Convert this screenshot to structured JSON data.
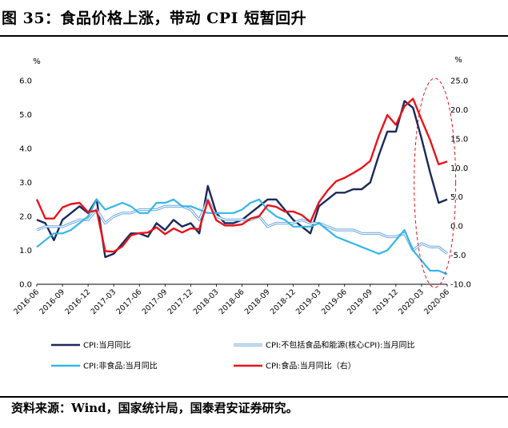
{
  "header": {
    "title": "图 35：食品价格上涨，带动 CPI 短暂回升"
  },
  "footer": {
    "source": "资料来源：Wind，国家统计局，国泰君安证券研究。"
  },
  "chart_data": {
    "type": "line",
    "left_axis": {
      "unit": "%",
      "ylim": [
        0,
        6
      ],
      "ticks": [
        "0.0",
        "1.0",
        "2.0",
        "3.0",
        "4.0",
        "5.0",
        "6.0"
      ]
    },
    "right_axis": {
      "unit": "%",
      "ylim": [
        -10,
        25
      ],
      "ticks": [
        "-10.0",
        "-5.0",
        "0.0",
        "5.0",
        "10.0",
        "15.0",
        "20.0",
        "25.0"
      ]
    },
    "x_tick_labels": [
      "2016-06",
      "2016-09",
      "2016-12",
      "2017-03",
      "2017-06",
      "2017-09",
      "2017-12",
      "2018-03",
      "2018-06",
      "2018-09",
      "2018-12",
      "2019-03",
      "2019-06",
      "2019-09",
      "2019-12",
      "2020-03",
      "2020-06"
    ],
    "x": [
      "2016-06",
      "2016-07",
      "2016-08",
      "2016-09",
      "2016-10",
      "2016-11",
      "2016-12",
      "2017-01",
      "2017-02",
      "2017-03",
      "2017-04",
      "2017-05",
      "2017-06",
      "2017-07",
      "2017-08",
      "2017-09",
      "2017-10",
      "2017-11",
      "2017-12",
      "2018-01",
      "2018-02",
      "2018-03",
      "2018-04",
      "2018-05",
      "2018-06",
      "2018-07",
      "2018-08",
      "2018-09",
      "2018-10",
      "2018-11",
      "2018-12",
      "2019-01",
      "2019-02",
      "2019-03",
      "2019-04",
      "2019-05",
      "2019-06",
      "2019-07",
      "2019-08",
      "2019-09",
      "2019-10",
      "2019-11",
      "2019-12",
      "2020-01",
      "2020-02",
      "2020-03",
      "2020-04",
      "2020-05",
      "2020-06"
    ],
    "series": [
      {
        "name": "CPI:当月同比",
        "axis": "left",
        "color": "#1a2a5c",
        "width": 2.4,
        "double": false,
        "values": [
          1.9,
          1.8,
          1.3,
          1.9,
          2.1,
          2.3,
          2.1,
          2.5,
          0.8,
          0.9,
          1.2,
          1.5,
          1.5,
          1.4,
          1.8,
          1.6,
          1.9,
          1.7,
          1.8,
          1.5,
          2.9,
          2.1,
          1.8,
          1.8,
          1.9,
          2.1,
          2.3,
          2.5,
          2.5,
          2.2,
          1.9,
          1.7,
          1.5,
          2.3,
          2.5,
          2.7,
          2.7,
          2.8,
          2.8,
          3.0,
          3.8,
          4.5,
          4.5,
          5.4,
          5.2,
          4.3,
          3.3,
          2.4,
          2.5
        ]
      },
      {
        "name": "CPI:不包括食品和能源(核心CPI):当月同比",
        "axis": "left",
        "color": "#6aa8da",
        "width": 1.1,
        "double": true,
        "values": [
          1.6,
          1.7,
          1.7,
          1.7,
          1.8,
          1.9,
          1.9,
          2.2,
          1.8,
          2.0,
          2.1,
          2.1,
          2.2,
          2.2,
          2.2,
          2.3,
          2.3,
          2.3,
          2.2,
          1.9,
          2.5,
          2.0,
          1.9,
          1.9,
          1.9,
          1.9,
          2.0,
          1.7,
          1.8,
          1.8,
          1.8,
          1.9,
          1.8,
          1.8,
          1.7,
          1.6,
          1.6,
          1.6,
          1.5,
          1.5,
          1.5,
          1.4,
          1.4,
          1.5,
          1.0,
          1.2,
          1.1,
          1.1,
          0.9
        ]
      },
      {
        "name": "CPI:非食品:当月同比",
        "axis": "left",
        "color": "#35b6e8",
        "width": 2.2,
        "double": false,
        "values": [
          1.1,
          1.3,
          1.5,
          1.5,
          1.6,
          1.8,
          2.0,
          2.5,
          2.2,
          2.3,
          2.4,
          2.3,
          2.1,
          2.1,
          2.4,
          2.4,
          2.5,
          2.3,
          2.3,
          2.2,
          2.1,
          2.1,
          2.1,
          2.1,
          2.2,
          2.4,
          2.5,
          2.2,
          2.0,
          1.9,
          1.7,
          1.7,
          1.7,
          1.8,
          1.6,
          1.4,
          1.3,
          1.2,
          1.1,
          1.0,
          0.9,
          1.0,
          1.3,
          1.6,
          1.0,
          0.7,
          0.4,
          0.4,
          0.3
        ]
      },
      {
        "name": "CPI:食品:当月同比（右）",
        "axis": "right",
        "color": "#e8141c",
        "width": 2.4,
        "double": false,
        "values": [
          4.6,
          1.3,
          1.3,
          3.2,
          3.8,
          4.0,
          2.4,
          2.7,
          -4.3,
          -4.4,
          -3.5,
          -1.6,
          -1.2,
          -1.1,
          -0.2,
          -1.4,
          -0.4,
          -1.1,
          -0.4,
          -0.5,
          4.4,
          1.0,
          0.1,
          0.1,
          0.3,
          1.3,
          1.7,
          3.6,
          3.3,
          2.5,
          2.5,
          1.9,
          0.7,
          4.1,
          6.1,
          7.7,
          8.3,
          9.1,
          10.0,
          11.2,
          15.5,
          19.1,
          17.4,
          20.6,
          21.9,
          18.3,
          14.8,
          10.6,
          11.1
        ]
      }
    ],
    "legend": {
      "position": "bottom",
      "entries": [
        {
          "label": "CPI:当月同比",
          "color": "#1a2a5c",
          "double": false
        },
        {
          "label": "CPI:不包括食品和能源(核心CPI):当月同比",
          "color": "#6aa8da",
          "double": true
        },
        {
          "label": "CPI:非食品:当月同比",
          "color": "#35b6e8",
          "double": false
        },
        {
          "label": "CPI:食品:当月同比（右）",
          "color": "#e8141c",
          "double": false
        }
      ]
    },
    "annotation": {
      "shape": "dashed-ellipse",
      "color": "#e8141c",
      "range": [
        "2020-02",
        "2020-06"
      ]
    }
  }
}
